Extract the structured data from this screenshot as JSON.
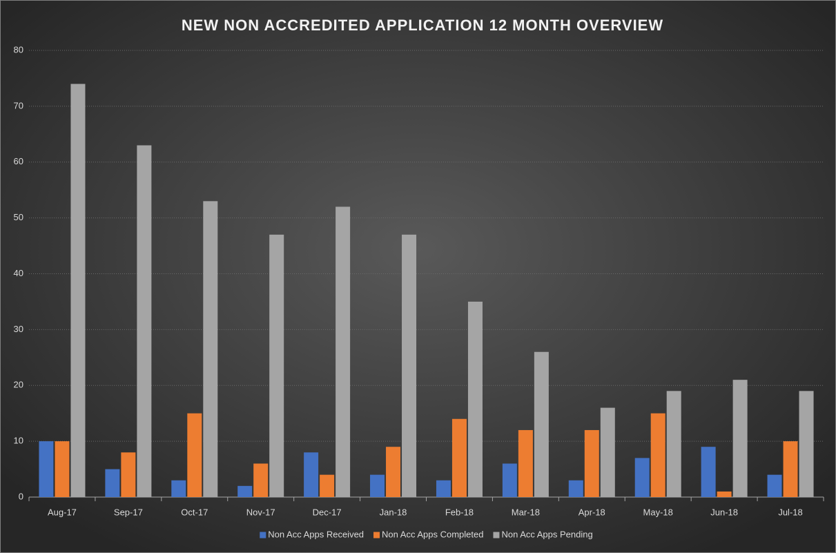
{
  "chart_data": {
    "type": "bar",
    "title": "NEW NON ACCREDITED APPLICATION 12 MONTH OVERVIEW",
    "categories": [
      "Aug-17",
      "Sep-17",
      "Oct-17",
      "Nov-17",
      "Dec-17",
      "Jan-18",
      "Feb-18",
      "Mar-18",
      "Apr-18",
      "May-18",
      "Jun-18",
      "Jul-18"
    ],
    "series": [
      {
        "name": "Non Acc Apps Received",
        "color": "#4472c4",
        "values": [
          10,
          5,
          3,
          2,
          8,
          4,
          3,
          6,
          3,
          7,
          9,
          4
        ]
      },
      {
        "name": "Non Acc Apps Completed",
        "color": "#ed7d31",
        "values": [
          10,
          8,
          15,
          6,
          4,
          9,
          14,
          12,
          12,
          15,
          1,
          10
        ]
      },
      {
        "name": "Non Acc Apps Pending",
        "color": "#a5a5a5",
        "values": [
          74,
          63,
          53,
          47,
          52,
          47,
          35,
          26,
          16,
          19,
          21,
          19
        ]
      }
    ],
    "ylim": [
      0,
      80
    ],
    "yticks": [
      0,
      10,
      20,
      30,
      40,
      50,
      60,
      70,
      80
    ],
    "grid": true,
    "legend": "bottom"
  }
}
